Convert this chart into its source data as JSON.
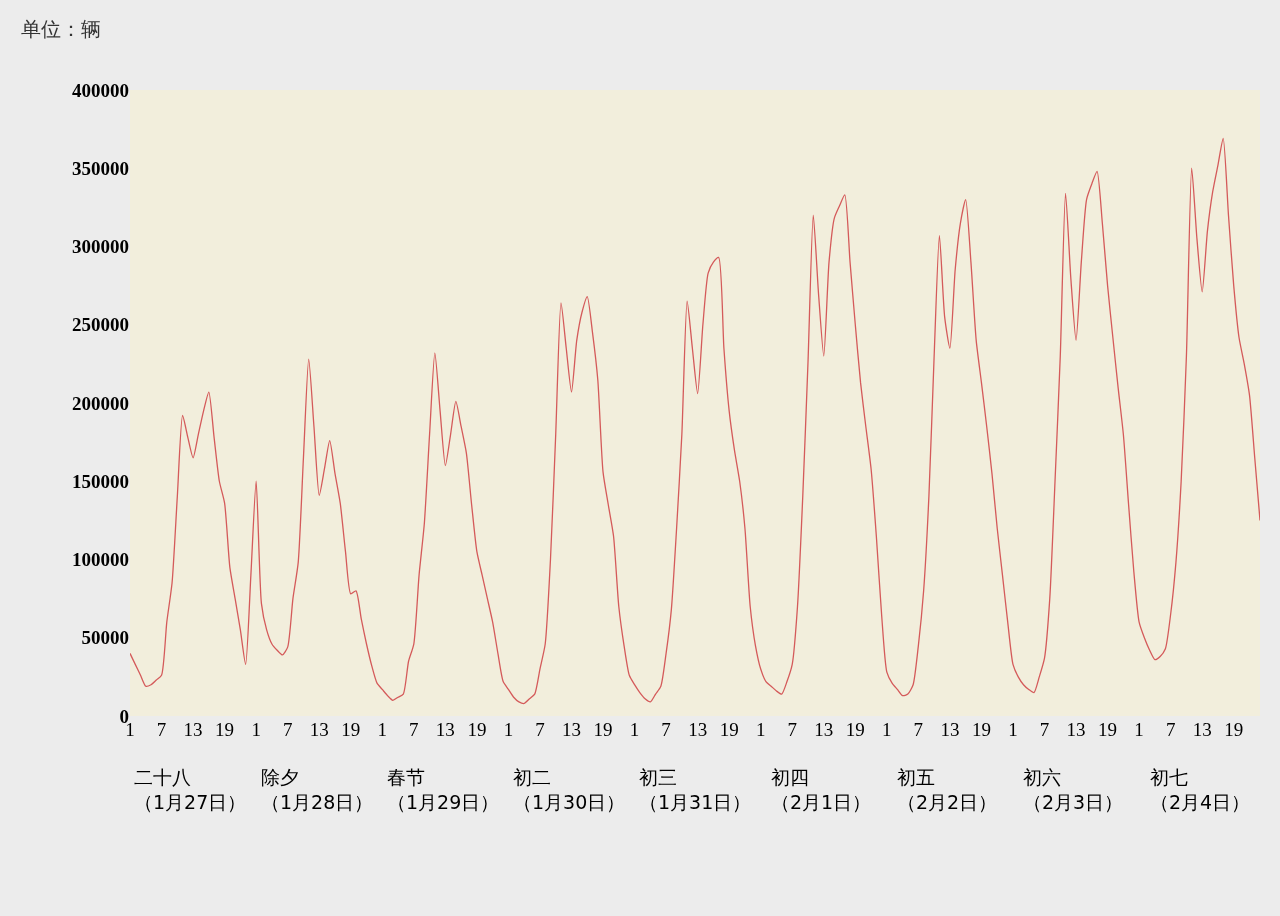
{
  "chart_data": {
    "type": "line",
    "ylabel": "单位：辆",
    "categories": [
      "1",
      null,
      null,
      null,
      null,
      null,
      "7",
      null,
      null,
      null,
      null,
      null,
      "13",
      null,
      null,
      null,
      null,
      null,
      "19",
      null,
      null,
      null,
      null,
      null,
      "1",
      null,
      null,
      null,
      null,
      null,
      "7",
      null,
      null,
      null,
      null,
      null,
      "13",
      null,
      null,
      null,
      null,
      null,
      "19",
      null,
      null,
      null,
      null,
      null,
      "1",
      null,
      null,
      null,
      null,
      null,
      "7",
      null,
      null,
      null,
      null,
      null,
      "13",
      null,
      null,
      null,
      null,
      null,
      "19",
      null,
      null,
      null,
      null,
      null,
      "1",
      null,
      null,
      null,
      null,
      null,
      "7",
      null,
      null,
      null,
      null,
      null,
      "13",
      null,
      null,
      null,
      null,
      null,
      "19",
      null,
      null,
      null,
      null,
      null,
      "1",
      null,
      null,
      null,
      null,
      null,
      "7",
      null,
      null,
      null,
      null,
      null,
      "13",
      null,
      null,
      null,
      null,
      null,
      "19",
      null,
      null,
      null,
      null,
      null,
      "1",
      null,
      null,
      null,
      null,
      null,
      "7",
      null,
      null,
      null,
      null,
      null,
      "13",
      null,
      null,
      null,
      null,
      null,
      "19",
      null,
      null,
      null,
      null,
      null,
      "1",
      null,
      null,
      null,
      null,
      null,
      "7",
      null,
      null,
      null,
      null,
      null,
      "13",
      null,
      null,
      null,
      null,
      null,
      "19",
      null,
      null,
      null,
      null,
      null,
      "1",
      null,
      null,
      null,
      null,
      null,
      "7",
      null,
      null,
      null,
      null,
      null,
      "13",
      null,
      null,
      null,
      null,
      null,
      "19",
      null,
      null,
      null,
      null,
      null,
      "1",
      null,
      null,
      null,
      null,
      null,
      "7",
      null,
      null,
      null,
      null,
      null,
      "13",
      null,
      null,
      null,
      null,
      null,
      "19",
      null,
      null,
      null,
      null,
      null
    ],
    "series": [
      {
        "color": "#d45a5a",
        "values": [
          40000,
          33000,
          26000,
          19000,
          20000,
          23000,
          26000,
          60000,
          85000,
          140000,
          192000,
          178000,
          165000,
          180000,
          195000,
          207000,
          178000,
          150000,
          136000,
          95000,
          75000,
          55000,
          33000,
          90000,
          150000,
          72000,
          55000,
          46000,
          42000,
          39000,
          44000,
          75000,
          98000,
          165000,
          228000,
          185000,
          141000,
          158000,
          176000,
          155000,
          136000,
          105000,
          78000,
          80000,
          62000,
          46000,
          32000,
          21000,
          17000,
          13000,
          10000,
          12000,
          14000,
          35000,
          46000,
          90000,
          123000,
          180000,
          232000,
          195000,
          160000,
          180000,
          201000,
          185000,
          168000,
          135000,
          105000,
          90000,
          75000,
          60000,
          40000,
          22000,
          17000,
          12000,
          9000,
          8000,
          11000,
          14000,
          30000,
          46000,
          100000,
          180000,
          264000,
          235000,
          207000,
          240000,
          258000,
          268000,
          245000,
          215000,
          156000,
          135000,
          115000,
          70000,
          45000,
          26000,
          20000,
          15000,
          11000,
          9000,
          14000,
          19000,
          40000,
          68000,
          120000,
          180000,
          265000,
          235000,
          206000,
          250000,
          283000,
          290000,
          293000,
          235000,
          195000,
          170000,
          150000,
          120000,
          70000,
          45000,
          30000,
          22000,
          19000,
          16000,
          14000,
          22000,
          33000,
          70000,
          140000,
          226000,
          320000,
          270000,
          230000,
          290000,
          318000,
          326000,
          333000,
          290000,
          250000,
          213000,
          185000,
          158000,
          115000,
          65000,
          28000,
          21000,
          17000,
          13000,
          14000,
          20000,
          45000,
          80000,
          140000,
          230000,
          307000,
          255000,
          235000,
          285000,
          315000,
          330000,
          290000,
          240000,
          213000,
          185000,
          155000,
          120000,
          90000,
          60000,
          33000,
          25000,
          20000,
          17000,
          15000,
          25000,
          37000,
          75000,
          150000,
          230000,
          334000,
          280000,
          240000,
          290000,
          330000,
          340000,
          348000,
          315000,
          275000,
          242000,
          210000,
          180000,
          135000,
          92000,
          60000,
          50000,
          42000,
          36000,
          38000,
          43000,
          65000,
          98000,
          150000,
          230000,
          350000,
          305000,
          271000,
          310000,
          335000,
          352000,
          369000,
          320000,
          275000,
          242000,
          225000,
          205000,
          165000,
          125000
        ]
      }
    ],
    "ylim": [
      0,
      400000
    ],
    "yticks": [
      0,
      50000,
      100000,
      150000,
      200000,
      250000,
      300000,
      350000,
      400000
    ],
    "annotations": [
      "二十八（1月27日）",
      "除夕（1月28日）",
      "春节（1月29日）",
      "初二（1月30日）",
      "初三（1月31日）",
      "初四（2月1日）",
      "初五（2月2日）",
      "初六（2月3日）",
      "初七（2月4日）"
    ],
    "grid": false,
    "marker": "none",
    "line_style": "solid"
  }
}
